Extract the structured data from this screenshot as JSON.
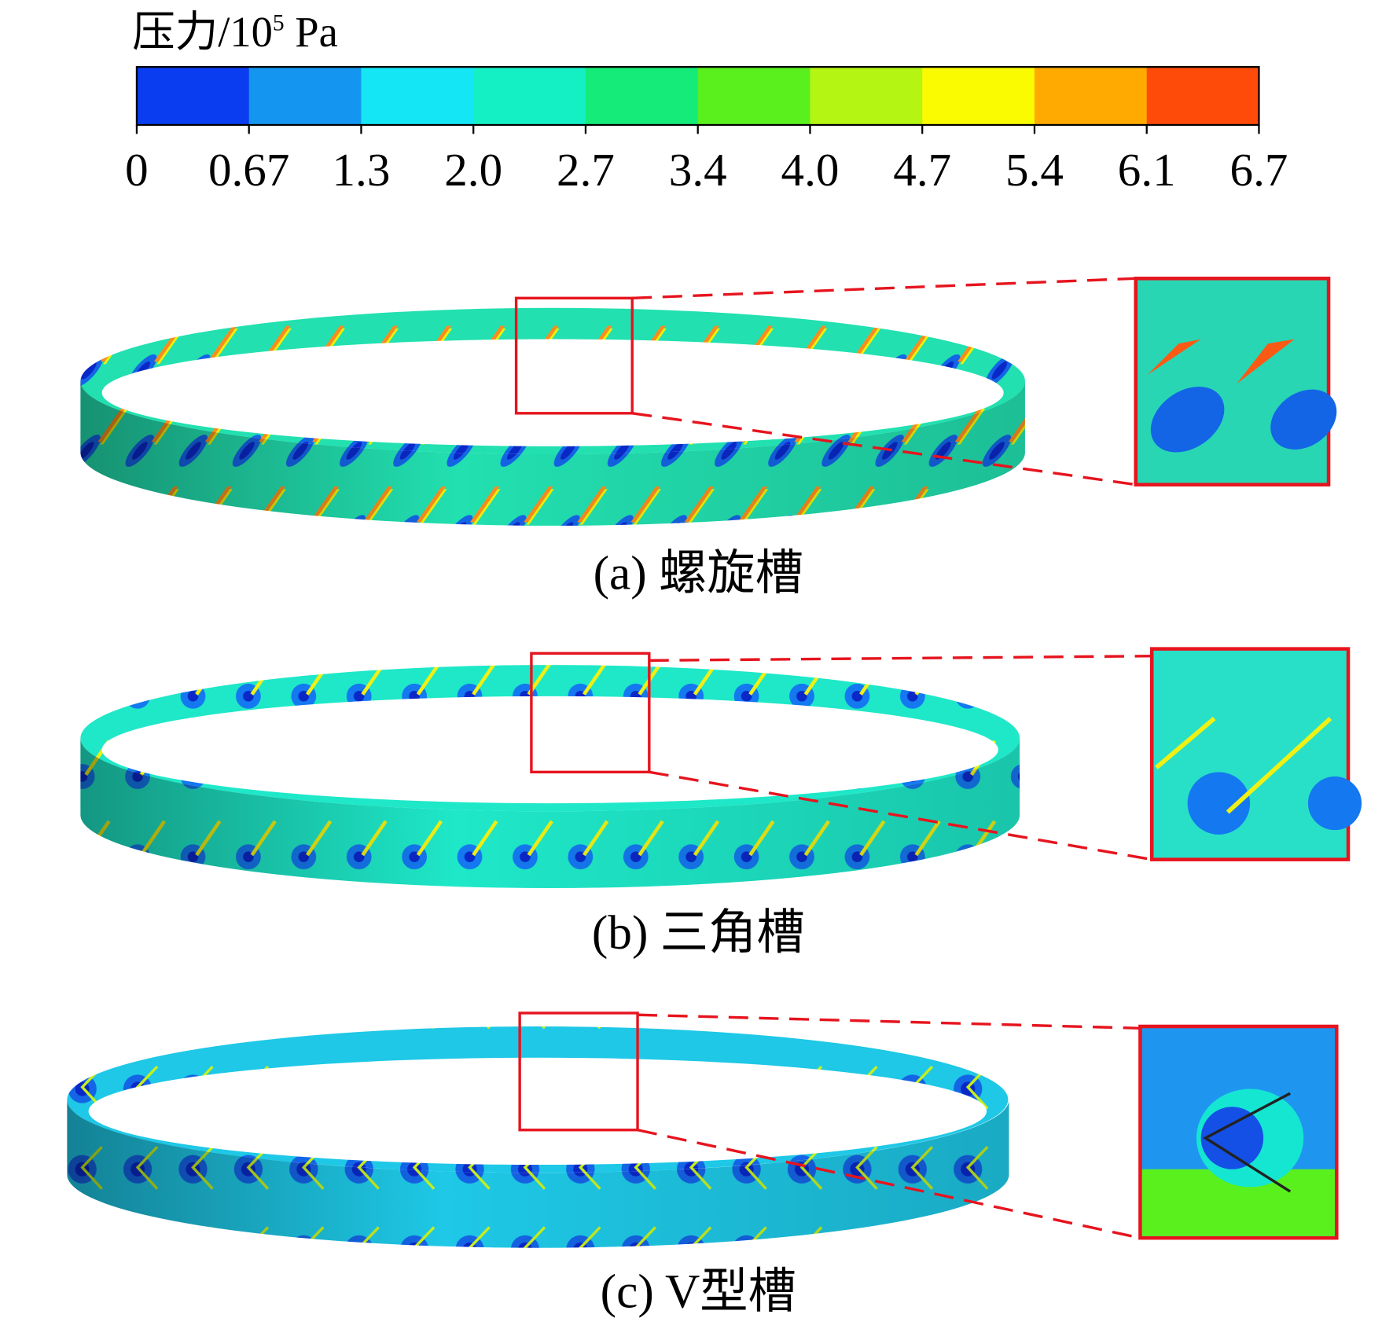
{
  "colorbar": {
    "title": "压力/10",
    "title_exponent": "5",
    "title_unit": "Pa",
    "ticks": [
      "0",
      "0.67",
      "1.3",
      "2.0",
      "2.7",
      "3.4",
      "4.0",
      "4.7",
      "5.4",
      "6.1",
      "6.7"
    ],
    "colors": [
      "#0a3cf0",
      "#1496f0",
      "#14e6f5",
      "#14f0c3",
      "#14eb78",
      "#5af01e",
      "#b4f514",
      "#fafa00",
      "#ffaa00",
      "#ff4b0a"
    ]
  },
  "panels": [
    {
      "caption": "(a) 螺旋槽"
    },
    {
      "caption": "(b) 三角槽"
    },
    {
      "caption": "(c) V型槽"
    }
  ]
}
